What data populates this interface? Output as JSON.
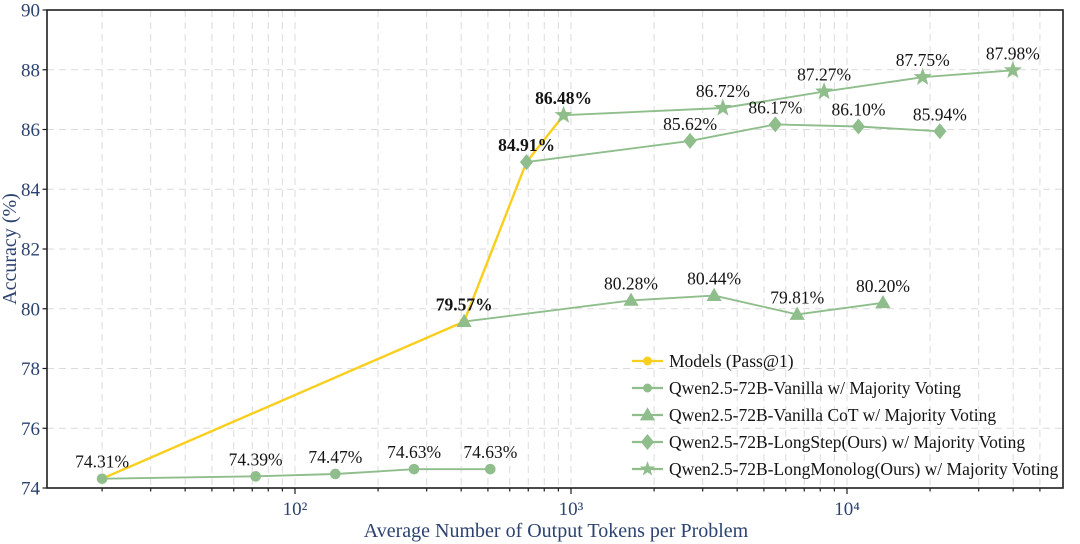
{
  "chart_data": {
    "type": "line",
    "xscale": "log",
    "title": "",
    "xlabel": "Average Number of Output Tokens per Problem",
    "ylabel": "Accuracy (%)",
    "ylim": [
      74,
      90
    ],
    "xlim": [
      13,
      58000
    ],
    "y_ticks": [
      74,
      76,
      78,
      80,
      82,
      84,
      86,
      88,
      90
    ],
    "x_ticks": [
      {
        "value": 100,
        "label": "10²"
      },
      {
        "value": 1000,
        "label": "10³"
      },
      {
        "value": 10000,
        "label": "10⁴"
      }
    ],
    "grid": {
      "horizontal": true,
      "vertical": true,
      "style": "dashed"
    },
    "legend_position": "lower-right",
    "series": [
      {
        "name": "Models (Pass@1)",
        "color": "#F9CF1E",
        "marker": "circle",
        "x": [
          20,
          410,
          690,
          940
        ],
        "y": [
          74.31,
          79.57,
          84.91,
          86.48
        ],
        "labels": null,
        "bold": null
      },
      {
        "name": "Qwen2.5-72B-Vanilla w/ Majority Voting",
        "color": "#8FBE8C",
        "marker": "circle",
        "x": [
          20,
          72,
          140,
          270,
          510
        ],
        "y": [
          74.31,
          74.39,
          74.47,
          74.63,
          74.63
        ],
        "labels": [
          "74.31%",
          "74.39%",
          "74.47%",
          "74.63%",
          "74.63%"
        ],
        "bold": [
          false,
          false,
          false,
          false,
          false
        ]
      },
      {
        "name": "Qwen2.5-72B-Vanilla CoT w/ Majority Voting",
        "color": "#8FBE8C",
        "marker": "triangle",
        "x": [
          410,
          1650,
          3300,
          6600,
          13500
        ],
        "y": [
          79.57,
          80.28,
          80.44,
          79.81,
          80.2
        ],
        "labels": [
          "79.57%",
          "80.28%",
          "80.44%",
          "79.81%",
          "80.20%"
        ],
        "bold": [
          true,
          false,
          false,
          false,
          false
        ]
      },
      {
        "name": "Qwen2.5-72B-LongStep(Ours) w/ Majority Voting",
        "color": "#8FBE8C",
        "marker": "diamond",
        "x": [
          690,
          2700,
          5500,
          11000,
          21700
        ],
        "y": [
          84.91,
          85.62,
          86.17,
          86.1,
          85.94
        ],
        "labels": [
          "84.91%",
          "85.62%",
          "86.17%",
          "86.10%",
          "85.94%"
        ],
        "bold": [
          true,
          false,
          false,
          false,
          false
        ]
      },
      {
        "name": "Qwen2.5-72B-LongMonolog(Ours) w/ Majority Voting",
        "color": "#8FBE8C",
        "marker": "star",
        "x": [
          940,
          3550,
          8260,
          18800,
          39900
        ],
        "y": [
          86.48,
          86.72,
          87.27,
          87.75,
          87.98
        ],
        "labels": [
          "86.48%",
          "86.72%",
          "87.27%",
          "87.75%",
          "87.98%"
        ],
        "bold": [
          true,
          false,
          false,
          false,
          false
        ]
      }
    ]
  },
  "style": {
    "background": "#FFFFFF",
    "axis_text_color": "#2C4270",
    "spine_color": "#1E1E1E",
    "grid_color": "#DBDBDB",
    "data_label_color": "#141414",
    "accent_yellow": "#F9CF1E",
    "accent_green": "#8FBE8C"
  }
}
